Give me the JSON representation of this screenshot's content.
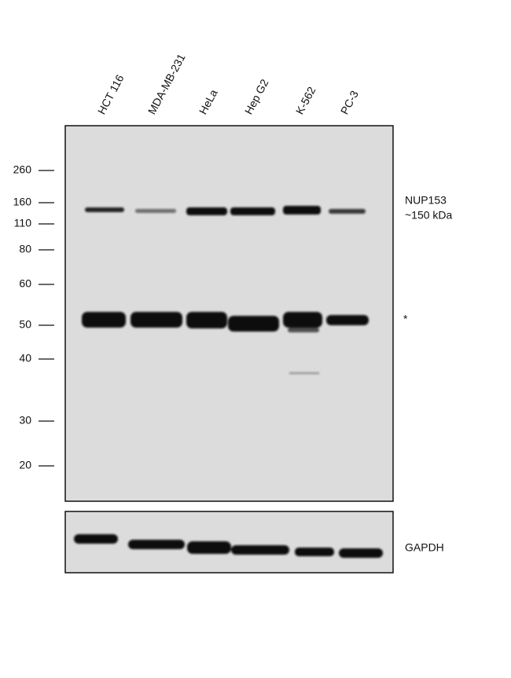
{
  "lanes": [
    "HCT 116",
    "MDA-MB-231",
    "HeLa",
    "Hep G2",
    "K-562",
    "PC-3"
  ],
  "markers": [
    260,
    160,
    110,
    80,
    60,
    50,
    40,
    30,
    20
  ],
  "target": {
    "name": "NUP153",
    "size": "~150 kDa"
  },
  "nonspecific_mark": "*",
  "loading_control": "GAPDH"
}
